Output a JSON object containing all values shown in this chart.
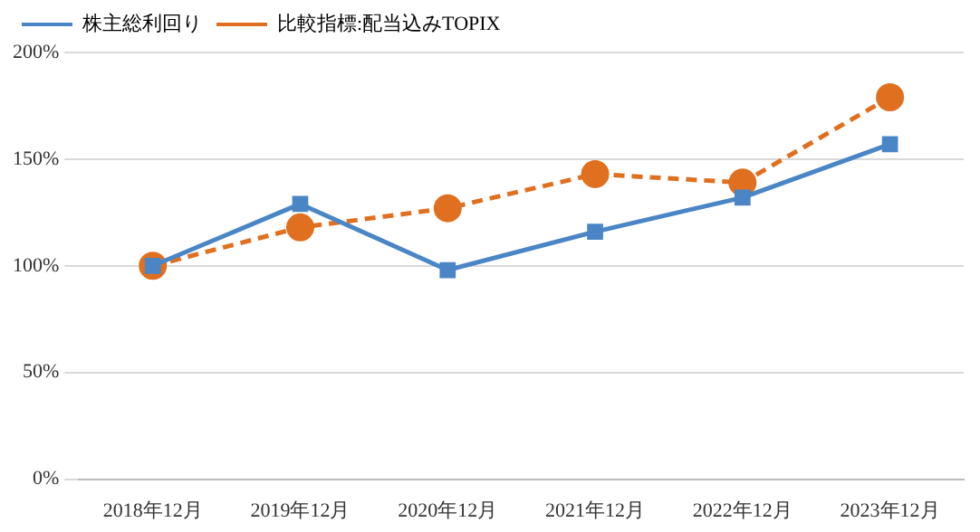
{
  "chart_data": {
    "type": "line",
    "categories": [
      "2018年12月",
      "2019年12月",
      "2020年12月",
      "2021年12月",
      "2022年12月",
      "2023年12月"
    ],
    "series": [
      {
        "name": "株主総利回り",
        "color": "#4a86c5",
        "values": [
          100,
          129,
          98,
          116,
          132,
          157
        ],
        "marker": "square",
        "line_style": "solid"
      },
      {
        "name": "比較指標:配当込みTOPIX",
        "color": "#e07020",
        "values": [
          100,
          118,
          127,
          143,
          139,
          179
        ],
        "marker": "circle",
        "line_style": "dashed"
      }
    ],
    "ylim": [
      0,
      200
    ],
    "yticks": [
      {
        "value": 0,
        "label": "0%"
      },
      {
        "value": 50,
        "label": "50%"
      },
      {
        "value": 100,
        "label": "100%"
      },
      {
        "value": 150,
        "label": "150%"
      },
      {
        "value": 200,
        "label": "200%"
      }
    ],
    "grid": "y",
    "legend": "top left"
  }
}
